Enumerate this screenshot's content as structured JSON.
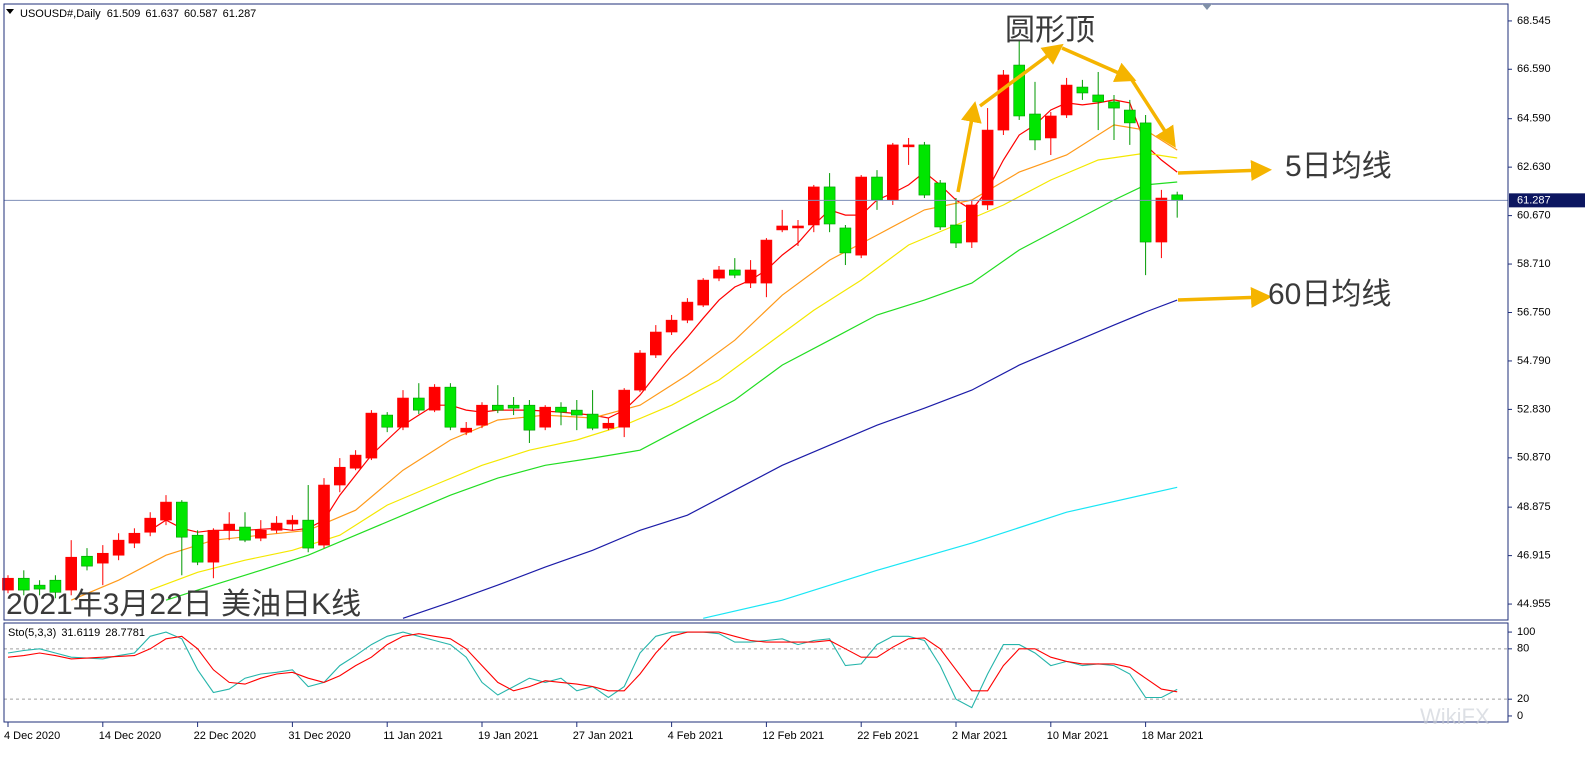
{
  "chart_data": [
    {
      "type": "candlestick",
      "symbol": "USOUSD#,Daily",
      "title": "2021年3月22日 美油日K线",
      "annotations": [
        "圆形顶",
        "5日均线",
        "60日均线"
      ],
      "watermark": "WikiFX",
      "categories": [
        "4 Dec 2020",
        null,
        null,
        null,
        null,
        null,
        "14 Dec 2020",
        null,
        null,
        null,
        null,
        null,
        "22 Dec 2020",
        null,
        null,
        null,
        null,
        null,
        "31 Dec 2020",
        null,
        null,
        null,
        null,
        null,
        "11 Jan 2021",
        null,
        null,
        null,
        null,
        null,
        "19 Jan 2021",
        null,
        null,
        null,
        null,
        null,
        "27 Jan 2021",
        null,
        null,
        null,
        null,
        null,
        "4 Feb 2021",
        null,
        null,
        null,
        null,
        null,
        "12 Feb 2021",
        null,
        null,
        null,
        null,
        null,
        "22 Feb 2021",
        null,
        null,
        null,
        null,
        null,
        "2 Mar 2021",
        null,
        null,
        null,
        null,
        null,
        "10 Mar 2021",
        null,
        null,
        null,
        null,
        null,
        "18 Mar 2021",
        null,
        null
      ],
      "open": [
        45.52,
        46.0,
        45.72,
        45.92,
        45.52,
        46.89,
        46.61,
        46.93,
        47.42,
        47.86,
        48.35,
        49.08,
        47.74,
        46.65,
        47.94,
        48.07,
        47.62,
        47.94,
        48.19,
        48.35,
        47.34,
        49.77,
        50.45,
        50.86,
        52.6,
        52.11,
        53.29,
        52.8,
        53.73,
        51.91,
        52.19,
        53.0,
        53.0,
        53.0,
        52.11,
        52.92,
        52.8,
        52.64,
        52.07,
        52.11,
        53.61,
        55.03,
        55.96,
        56.44,
        57.05,
        58.14,
        58.47,
        57.94,
        57.94,
        60.09,
        60.17,
        60.29,
        61.83,
        60.17,
        59.07,
        62.23,
        61.3,
        63.45,
        63.53,
        61.99,
        60.29,
        59.6,
        61.1,
        64.13,
        66.76,
        64.78,
        63.81,
        64.74,
        65.87,
        65.55,
        65.27,
        64.94,
        64.42,
        59.6,
        61.509
      ],
      "high": [
        46.12,
        46.32,
        45.92,
        46.12,
        47.54,
        47.22,
        47.34,
        47.82,
        48.02,
        48.67,
        49.36,
        49.16,
        47.94,
        48.02,
        48.67,
        48.67,
        48.35,
        48.51,
        48.55,
        49.77,
        50.05,
        50.86,
        51.18,
        52.8,
        52.72,
        53.61,
        53.89,
        53.85,
        53.89,
        52.32,
        53.12,
        53.81,
        53.33,
        53.21,
        53.0,
        53.12,
        53.21,
        53.61,
        52.48,
        53.69,
        55.23,
        56.24,
        56.65,
        57.33,
        58.14,
        58.63,
        58.95,
        58.87,
        59.76,
        60.9,
        60.49,
        61.91,
        62.39,
        60.29,
        62.31,
        62.51,
        63.61,
        63.81,
        63.65,
        62.11,
        61.38,
        61.3,
        65.02,
        66.56,
        67.78,
        66.08,
        64.86,
        66.24,
        66.16,
        66.48,
        65.55,
        65.35,
        64.74,
        61.71,
        61.637
      ],
      "low": [
        45.39,
        45.31,
        45.31,
        45.19,
        45.31,
        46.32,
        45.72,
        46.73,
        47.22,
        47.7,
        48.15,
        46.12,
        46.53,
        46.0,
        47.54,
        47.46,
        47.5,
        47.82,
        47.94,
        47.05,
        47.22,
        49.48,
        50.37,
        50.78,
        51.91,
        51.99,
        52.64,
        52.72,
        51.99,
        51.79,
        52.07,
        52.68,
        52.6,
        51.47,
        51.99,
        52.19,
        51.99,
        51.99,
        51.99,
        51.71,
        53.53,
        54.91,
        55.84,
        56.32,
        56.97,
        58.02,
        58.14,
        57.74,
        57.37,
        60.0,
        59.44,
        60.0,
        60.0,
        58.67,
        58.95,
        60.9,
        61.1,
        62.72,
        61.38,
        60.09,
        59.36,
        59.36,
        60.9,
        63.93,
        64.54,
        63.32,
        63.12,
        64.62,
        65.35,
        64.13,
        63.73,
        63.53,
        58.26,
        58.95,
        60.587
      ],
      "close": [
        46.0,
        45.52,
        45.56,
        45.43,
        46.85,
        46.49,
        47.01,
        47.54,
        47.82,
        48.43,
        49.08,
        47.66,
        46.65,
        47.94,
        48.19,
        47.54,
        47.94,
        48.23,
        48.35,
        47.22,
        49.77,
        50.49,
        50.98,
        52.68,
        52.11,
        53.29,
        52.8,
        53.73,
        52.11,
        52.07,
        53.0,
        52.8,
        52.88,
        51.99,
        52.92,
        52.72,
        52.6,
        52.07,
        52.27,
        53.61,
        55.11,
        55.96,
        56.44,
        57.17,
        58.06,
        58.47,
        58.26,
        58.47,
        59.68,
        60.25,
        60.25,
        61.83,
        60.33,
        59.16,
        62.23,
        61.3,
        63.53,
        63.53,
        61.5,
        60.21,
        59.56,
        61.1,
        64.13,
        66.36,
        64.7,
        63.73,
        64.7,
        65.95,
        65.63,
        65.27,
        65.02,
        64.42,
        59.6,
        61.38,
        61.287
      ],
      "up_color": "#ff0000",
      "down_color": "#00e600",
      "down_wick_color": "#009900",
      "price_line_color": "#7f8fb8",
      "series": [
        {
          "color": "#ff0000",
          "x": [
            9,
            10,
            11,
            12,
            13,
            15,
            17,
            18,
            19,
            20,
            21,
            22,
            23,
            24,
            25,
            26,
            27,
            28,
            29,
            30,
            31,
            33,
            35,
            37,
            38,
            39,
            40,
            41,
            42,
            43,
            44,
            45,
            46,
            47,
            48,
            49,
            50,
            51,
            52,
            53,
            54,
            55,
            56,
            57,
            58,
            59,
            60,
            61,
            62,
            63,
            64,
            65,
            66,
            67,
            68,
            69,
            70,
            71,
            72,
            73,
            74
          ],
          "values": [
            47.94,
            48.35,
            48.02,
            47.86,
            47.94,
            47.94,
            48.02,
            47.94,
            48.02,
            48.35,
            49.36,
            50.17,
            50.98,
            51.59,
            52.19,
            52.6,
            53.0,
            53.0,
            52.8,
            52.72,
            52.8,
            52.8,
            52.72,
            52.6,
            52.48,
            52.8,
            53.41,
            54.22,
            55.03,
            55.75,
            56.52,
            57.25,
            57.78,
            58.06,
            58.47,
            59.07,
            59.56,
            60.29,
            60.9,
            60.69,
            60.69,
            61.3,
            61.58,
            61.91,
            62.43,
            61.91,
            61.3,
            60.9,
            61.71,
            62.92,
            63.93,
            64.34,
            64.94,
            65.23,
            65.15,
            65.23,
            65.35,
            65.23,
            63.53,
            62.92,
            62.43
          ]
        },
        {
          "color": "#ff9a1a",
          "x": [
            4,
            7,
            10,
            13,
            16,
            19,
            22,
            25,
            28,
            31,
            34,
            37,
            40,
            43,
            46,
            49,
            52,
            55,
            58,
            61,
            64,
            67,
            70,
            72,
            74
          ],
          "values": [
            45.11,
            45.92,
            46.93,
            47.54,
            47.74,
            47.94,
            48.75,
            50.37,
            51.59,
            52.4,
            52.6,
            52.48,
            53.0,
            54.22,
            55.63,
            57.45,
            58.87,
            59.88,
            60.9,
            61.3,
            62.43,
            63.12,
            64.34,
            64.13,
            63.32
          ]
        },
        {
          "color": "#f4e800",
          "x": [
            9,
            12,
            15,
            18,
            21,
            24,
            27,
            30,
            33,
            36,
            39,
            42,
            45,
            48,
            51,
            54,
            57,
            60,
            63,
            66,
            69,
            72,
            74
          ],
          "values": [
            45.52,
            46.24,
            46.73,
            47.13,
            47.74,
            48.96,
            49.77,
            50.57,
            51.18,
            51.59,
            52.19,
            53.0,
            54.02,
            55.43,
            56.84,
            58.06,
            59.48,
            60.29,
            61.1,
            62.11,
            62.92,
            63.2,
            63.0
          ]
        },
        {
          "color": "#22dd22",
          "x": [
            10,
            13,
            16,
            19,
            22,
            25,
            28,
            31,
            34,
            37,
            40,
            43,
            46,
            49,
            52,
            55,
            58,
            61,
            64,
            67,
            70,
            72,
            74
          ],
          "values": [
            45.11,
            45.72,
            46.32,
            46.93,
            47.74,
            48.55,
            49.36,
            50.05,
            50.57,
            50.86,
            51.18,
            52.19,
            53.21,
            54.62,
            55.63,
            56.65,
            57.25,
            57.94,
            59.28,
            60.29,
            61.3,
            61.91,
            62.03
          ]
        },
        {
          "color": "#1c1ca8",
          "x": [
            25,
            28,
            31,
            34,
            37,
            40,
            43,
            46,
            49,
            52,
            55,
            58,
            61,
            64,
            67,
            70,
            72,
            74
          ],
          "values": [
            44.38,
            45.03,
            45.72,
            46.45,
            47.13,
            47.94,
            48.55,
            49.56,
            50.57,
            51.38,
            52.19,
            52.88,
            53.61,
            54.62,
            55.43,
            56.24,
            56.77,
            57.25
          ]
        },
        {
          "color": "#19e6f5",
          "x": [
            44,
            49,
            55,
            61,
            67,
            74
          ],
          "values": [
            44.38,
            45.11,
            46.32,
            47.42,
            48.67,
            49.68
          ]
        }
      ],
      "ylim": [
        44.31,
        69.23
      ],
      "yticks": [
        {
          "value": 44.955,
          "label": "44.955"
        },
        46.915,
        48.875,
        {
          "value": 50.87,
          "label": "50.870"
        },
        {
          "value": 52.83,
          "label": "52.830"
        },
        {
          "value": 54.79,
          "label": "54.790"
        },
        {
          "value": 56.75,
          "label": "56.750"
        },
        {
          "value": 58.71,
          "label": "58.710"
        },
        {
          "value": 60.67,
          "label": "60.670"
        },
        {
          "value": 62.63,
          "label": "62.630"
        },
        {
          "value": 64.59,
          "label": "64.590"
        },
        {
          "value": 66.59,
          "label": "66.590"
        },
        68.545
      ]
    },
    {
      "type": "line",
      "title": "Sto(5,3,3)",
      "series": [
        {
          "color": "#26b5ab",
          "values": [
            75,
            78,
            80,
            75,
            70,
            69,
            68,
            72,
            75,
            95,
            100,
            92,
            55,
            28,
            32,
            45,
            50,
            52,
            55,
            35,
            40,
            60,
            72,
            85,
            95,
            100,
            95,
            90,
            85,
            70,
            40,
            25,
            35,
            45,
            40,
            45,
            30,
            35,
            22,
            35,
            75,
            95,
            100,
            100,
            100,
            98,
            88,
            88,
            90,
            92,
            85,
            90,
            92,
            60,
            62,
            85,
            95,
            95,
            90,
            60,
            20,
            10,
            50,
            85,
            85,
            75,
            60,
            65,
            60,
            62,
            60,
            50,
            22,
            22,
            31.6119
          ]
        },
        {
          "color": "#ff0000",
          "values": [
            70,
            72,
            75,
            72,
            68,
            69,
            70,
            71,
            72,
            80,
            92,
            95,
            80,
            55,
            40,
            38,
            45,
            50,
            52,
            45,
            40,
            48,
            60,
            70,
            85,
            95,
            98,
            95,
            92,
            80,
            60,
            40,
            30,
            35,
            42,
            40,
            38,
            35,
            30,
            30,
            50,
            75,
            95,
            100,
            100,
            100,
            95,
            90,
            88,
            88,
            88,
            88,
            90,
            80,
            70,
            70,
            82,
            92,
            93,
            80,
            55,
            30,
            30,
            60,
            80,
            80,
            70,
            65,
            62,
            62,
            62,
            58,
            45,
            32,
            28.7781
          ]
        }
      ],
      "ylim": [
        -7.2,
        110.8
      ],
      "yticks": [
        0,
        20,
        80,
        100
      ]
    }
  ]
}
